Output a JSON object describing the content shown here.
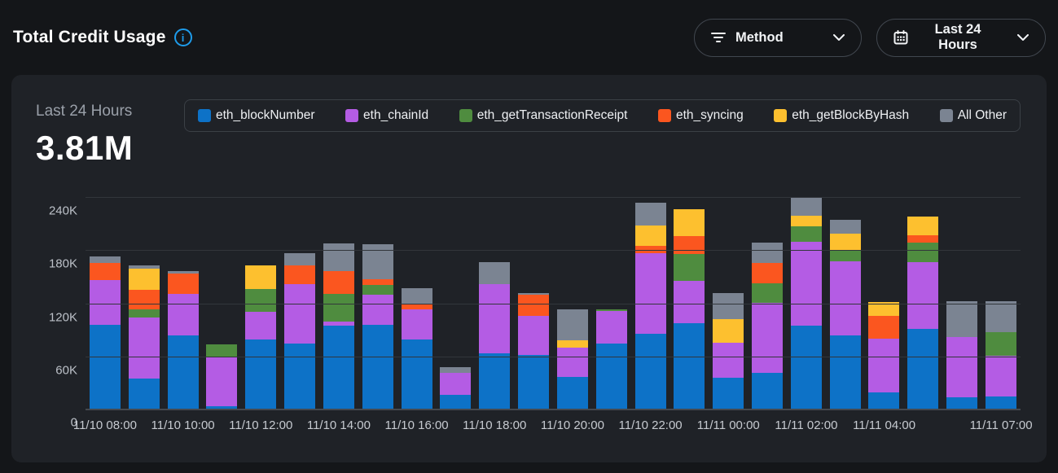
{
  "header": {
    "title": "Total Credit Usage"
  },
  "filters": {
    "method": {
      "label": "Method"
    },
    "time_range": {
      "label": "Last 24 Hours"
    }
  },
  "panel": {
    "period_label": "Last 24 Hours",
    "total_value": "3.81M"
  },
  "colors": {
    "accent_info": "#1e9ceb",
    "page_bg": "#141619",
    "panel_bg": "#1f2227",
    "blue": "#0d72c7",
    "purple": "#b45ce4",
    "green": "#4f8c3f",
    "orange": "#fb561f",
    "yellow": "#fdc02f",
    "gray": "#7b8492"
  },
  "chart_data": {
    "type": "bar",
    "stacked": true,
    "title": "Total Credit Usage",
    "subtitle": "Last 24 Hours",
    "total": "3.81M",
    "unit": "K credits",
    "ylim": [
      0,
      240
    ],
    "grid": true,
    "legend_position": "top",
    "y_ticks": [
      {
        "value": 0,
        "label": "0"
      },
      {
        "value": 60,
        "label": "60K"
      },
      {
        "value": 120,
        "label": "120K"
      },
      {
        "value": 180,
        "label": "180K"
      },
      {
        "value": 240,
        "label": "240K"
      }
    ],
    "x_tick_labels": [
      {
        "index": 0,
        "label": "11/10 08:00"
      },
      {
        "index": 2,
        "label": "11/10 10:00"
      },
      {
        "index": 4,
        "label": "11/10 12:00"
      },
      {
        "index": 6,
        "label": "11/10 14:00"
      },
      {
        "index": 8,
        "label": "11/10 16:00"
      },
      {
        "index": 10,
        "label": "11/10 18:00"
      },
      {
        "index": 12,
        "label": "11/10 20:00"
      },
      {
        "index": 14,
        "label": "11/10 22:00"
      },
      {
        "index": 16,
        "label": "11/11 00:00"
      },
      {
        "index": 18,
        "label": "11/11 02:00"
      },
      {
        "index": 20,
        "label": "11/11 04:00"
      },
      {
        "index": 23,
        "label": "11/11 07:00"
      }
    ],
    "num_bars": 24,
    "series": [
      {
        "name": "eth_blockNumber",
        "color": "#0d72c7",
        "values": [
          96,
          36,
          84,
          5,
          80,
          75,
          95,
          96,
          80,
          17,
          64,
          62,
          38,
          75,
          86,
          98,
          37,
          42,
          95,
          84,
          20,
          92,
          15,
          16
        ]
      },
      {
        "name": "eth_chainId",
        "color": "#b45ce4",
        "values": [
          50,
          69,
          47,
          55,
          31,
          67,
          5,
          34,
          34,
          25,
          78,
          44,
          33,
          37,
          91,
          48,
          39,
          79,
          94,
          83,
          60,
          75,
          68,
          46
        ]
      },
      {
        "name": "eth_getTransactionReceipt",
        "color": "#4f8c3f",
        "values": [
          0,
          9,
          0,
          15,
          26,
          0,
          31,
          11,
          0,
          0,
          0,
          0,
          0,
          2,
          0,
          30,
          0,
          22,
          17,
          13,
          0,
          22,
          0,
          27
        ]
      },
      {
        "name": "eth_syncing",
        "color": "#fb561f",
        "values": [
          19,
          22,
          23,
          0,
          0,
          21,
          26,
          6,
          6,
          0,
          0,
          24,
          0,
          0,
          8,
          20,
          0,
          23,
          0,
          0,
          26,
          8,
          0,
          0
        ]
      },
      {
        "name": "eth_getBlockByHash",
        "color": "#fdc02f",
        "values": [
          0,
          24,
          0,
          0,
          27,
          0,
          0,
          0,
          0,
          0,
          0,
          0,
          8,
          0,
          23,
          30,
          27,
          0,
          12,
          18,
          16,
          21,
          0,
          0
        ]
      },
      {
        "name": "All Other",
        "color": "#7b8492",
        "values": [
          7,
          4,
          3,
          0,
          0,
          14,
          31,
          39,
          17,
          6,
          25,
          2,
          35,
          0,
          26,
          0,
          29,
          23,
          20,
          16,
          0,
          0,
          40,
          35
        ]
      }
    ]
  }
}
